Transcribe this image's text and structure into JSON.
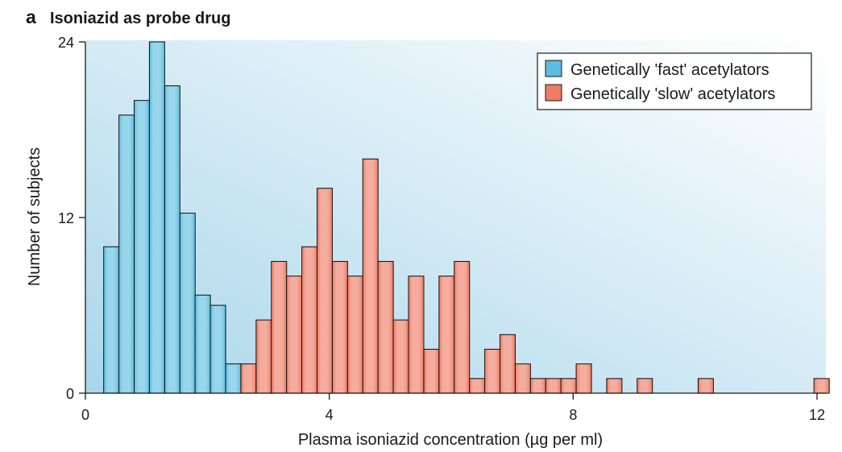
{
  "panel": {
    "letter": "a",
    "title": "Isoniazid as probe drug"
  },
  "colors": {
    "fast": "#5cbde0",
    "slow": "#ee7b64",
    "bar_edge": "#1a1a1a",
    "plot_bg_start": "#a9d6ea",
    "plot_bg_end": "#ffffff"
  },
  "chart_data": {
    "type": "bar",
    "title": "Isoniazid as probe drug",
    "xlabel": "Plasma isoniazid concentration (µg per ml)",
    "ylabel": "Number of subjects",
    "xlim": [
      0,
      12.2
    ],
    "ylim": [
      0,
      24
    ],
    "x_ticks": [
      0,
      4,
      8,
      12
    ],
    "x_tick_labels": [
      "0",
      "4",
      "8",
      "12"
    ],
    "y_ticks": [
      0,
      12,
      24
    ],
    "y_tick_labels": [
      "0",
      "12",
      "24"
    ],
    "bin_width": 0.25,
    "grid": false,
    "legend_position": "top-right",
    "series": [
      {
        "name": "Genetically 'fast' acetylators",
        "bins": [
          {
            "x": 0.3,
            "count": 10
          },
          {
            "x": 0.55,
            "count": 19
          },
          {
            "x": 0.8,
            "count": 20
          },
          {
            "x": 1.05,
            "count": 24
          },
          {
            "x": 1.3,
            "count": 21
          },
          {
            "x": 1.55,
            "count": 12.3
          },
          {
            "x": 1.8,
            "count": 6.7
          },
          {
            "x": 2.05,
            "count": 6
          },
          {
            "x": 2.3,
            "count": 2
          }
        ]
      },
      {
        "name": "Genetically 'slow' acetylators",
        "bins": [
          {
            "x": 2.55,
            "count": 2
          },
          {
            "x": 2.8,
            "count": 5
          },
          {
            "x": 3.05,
            "count": 9
          },
          {
            "x": 3.3,
            "count": 8
          },
          {
            "x": 3.55,
            "count": 10
          },
          {
            "x": 3.8,
            "count": 14
          },
          {
            "x": 4.05,
            "count": 9
          },
          {
            "x": 4.3,
            "count": 8
          },
          {
            "x": 4.55,
            "count": 16
          },
          {
            "x": 4.8,
            "count": 9
          },
          {
            "x": 5.05,
            "count": 5
          },
          {
            "x": 5.3,
            "count": 8
          },
          {
            "x": 5.55,
            "count": 3
          },
          {
            "x": 5.8,
            "count": 8
          },
          {
            "x": 6.05,
            "count": 9
          },
          {
            "x": 6.3,
            "count": 1
          },
          {
            "x": 6.55,
            "count": 3
          },
          {
            "x": 6.8,
            "count": 4
          },
          {
            "x": 7.05,
            "count": 2
          },
          {
            "x": 7.3,
            "count": 1
          },
          {
            "x": 7.55,
            "count": 1
          },
          {
            "x": 7.8,
            "count": 1
          },
          {
            "x": 8.05,
            "count": 2
          },
          {
            "x": 8.55,
            "count": 1
          },
          {
            "x": 9.05,
            "count": 1
          },
          {
            "x": 10.05,
            "count": 1
          },
          {
            "x": 11.95,
            "count": 1
          }
        ]
      }
    ]
  }
}
